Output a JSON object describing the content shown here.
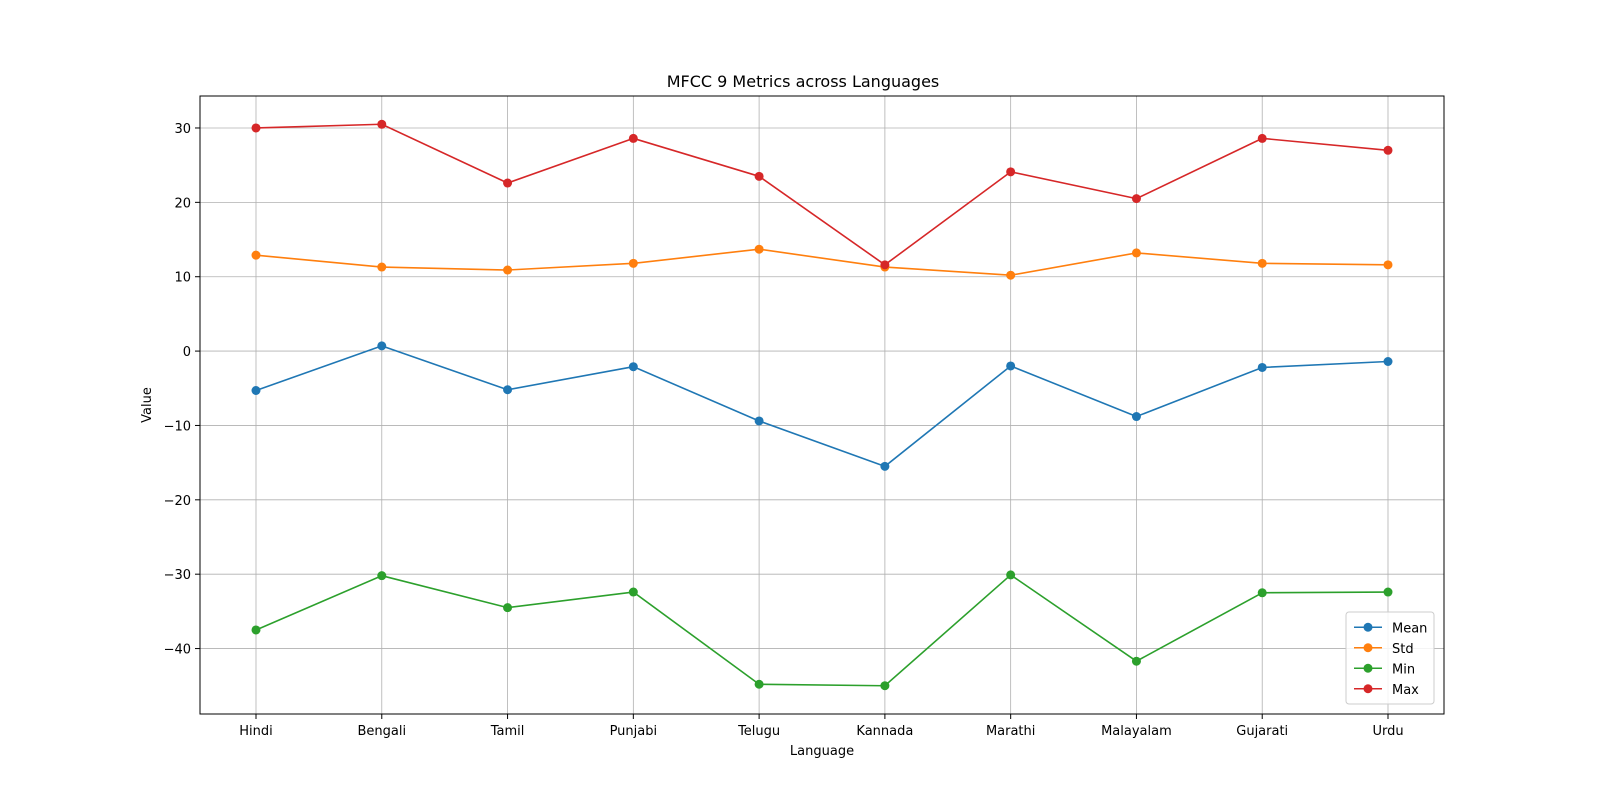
{
  "chart_data": {
    "type": "line",
    "title": "MFCC 9 Metrics across Languages",
    "xlabel": "Language",
    "ylabel": "Value",
    "categories": [
      "Hindi",
      "Bengali",
      "Tamil",
      "Punjabi",
      "Telugu",
      "Kannada",
      "Marathi",
      "Malayalam",
      "Gujarati",
      "Urdu"
    ],
    "ylim": [
      -48.8,
      34.3
    ],
    "yticks": [
      30,
      20,
      10,
      0,
      -10,
      -20,
      -30,
      -40
    ],
    "ytick_labels": [
      "30",
      "20",
      "10",
      "0",
      "−10",
      "−20",
      "−30",
      "−40"
    ],
    "grid": true,
    "legend_position": "lower-right",
    "series": [
      {
        "name": "Mean",
        "color": "#1f77b4",
        "values": [
          -5.3,
          0.7,
          -5.2,
          -2.1,
          -9.4,
          -15.5,
          -2.0,
          -8.8,
          -2.2,
          -1.4
        ]
      },
      {
        "name": "Std",
        "color": "#ff7f0e",
        "values": [
          12.9,
          11.3,
          10.9,
          11.8,
          13.7,
          11.3,
          10.2,
          13.2,
          11.8,
          11.6
        ]
      },
      {
        "name": "Min",
        "color": "#2ca02c",
        "values": [
          -37.5,
          -30.2,
          -34.5,
          -32.4,
          -44.8,
          -45.0,
          -30.1,
          -41.7,
          -32.5,
          -32.4
        ]
      },
      {
        "name": "Max",
        "color": "#d62728",
        "values": [
          30.0,
          30.5,
          22.6,
          28.6,
          23.5,
          11.6,
          24.1,
          20.5,
          28.6,
          27.0
        ]
      }
    ]
  }
}
